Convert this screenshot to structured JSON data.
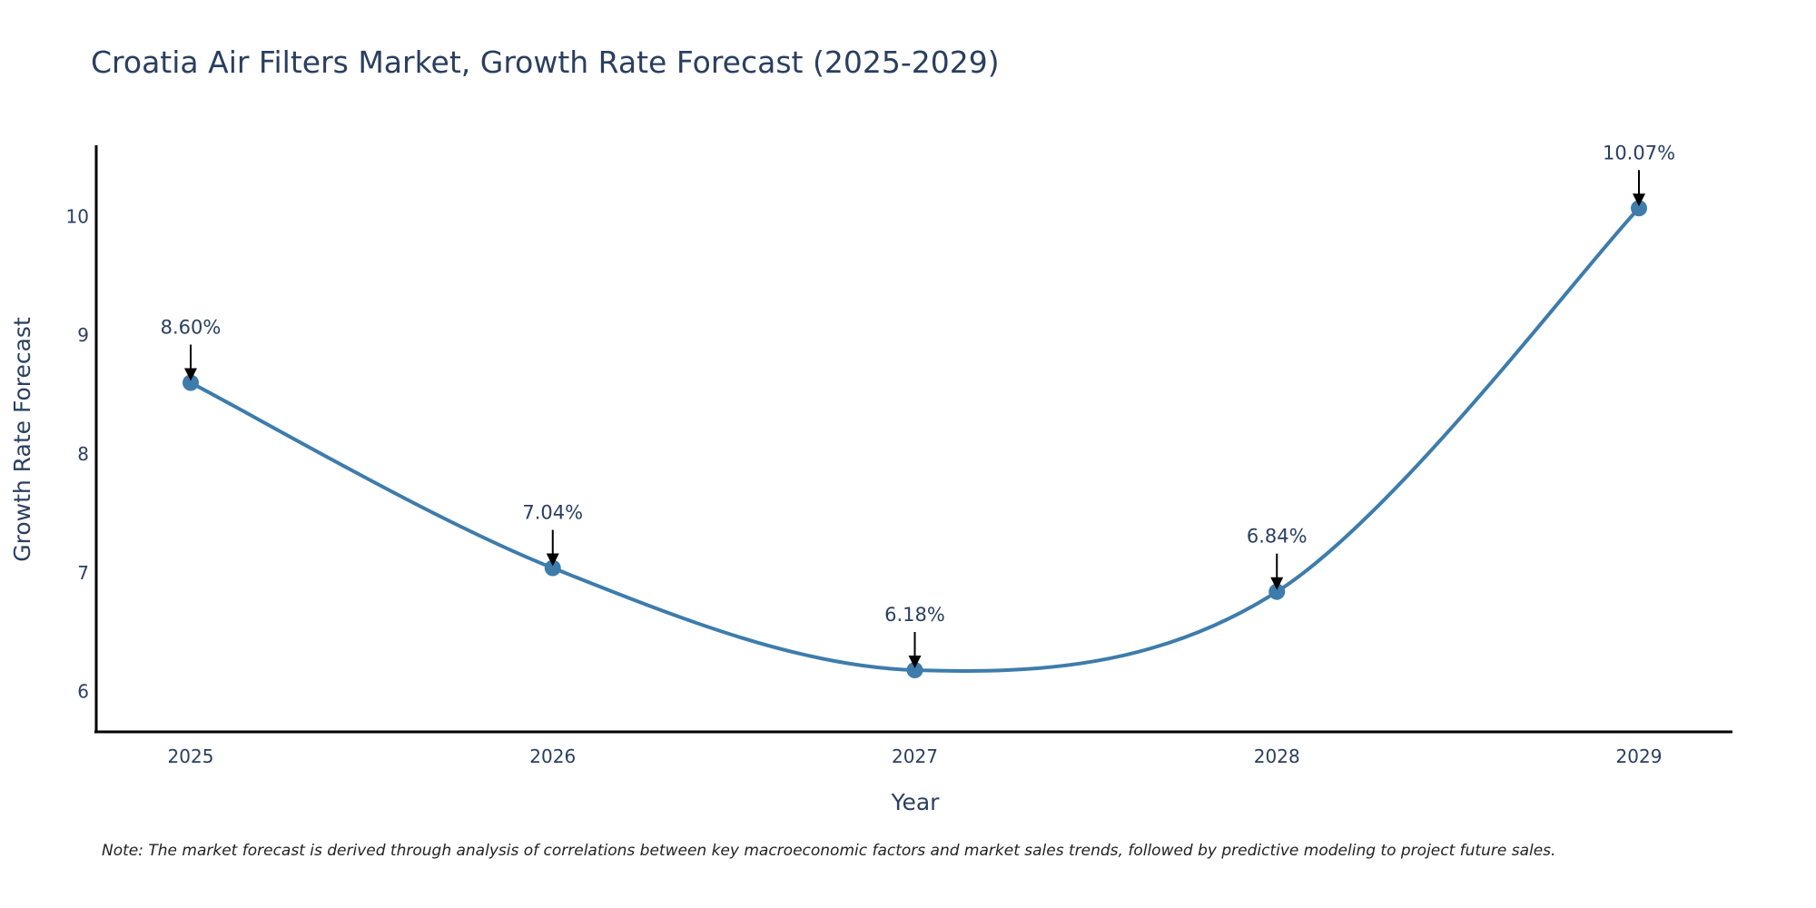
{
  "chart_data": {
    "type": "line",
    "title": "Croatia Air Filters Market, Growth Rate Forecast (2025-2029)",
    "xlabel": "Year",
    "ylabel": "Growth Rate Forecast",
    "categories": [
      "2025",
      "2026",
      "2027",
      "2028",
      "2029"
    ],
    "series": [
      {
        "name": "Growth Rate Forecast",
        "values": [
          8.6,
          7.04,
          6.18,
          6.84,
          10.07
        ],
        "labels": [
          "8.60%",
          "7.04%",
          "6.18%",
          "6.84%",
          "10.07%"
        ],
        "color": "#3d7cab"
      }
    ],
    "yticks": [
      6,
      7,
      8,
      9,
      10
    ],
    "ylim": [
      5.66,
      10.6
    ],
    "grid": false,
    "note": "Note: The market forecast is derived through analysis of correlations between key macroeconomic factors and market sales trends, followed by predictive modeling to project future sales."
  }
}
